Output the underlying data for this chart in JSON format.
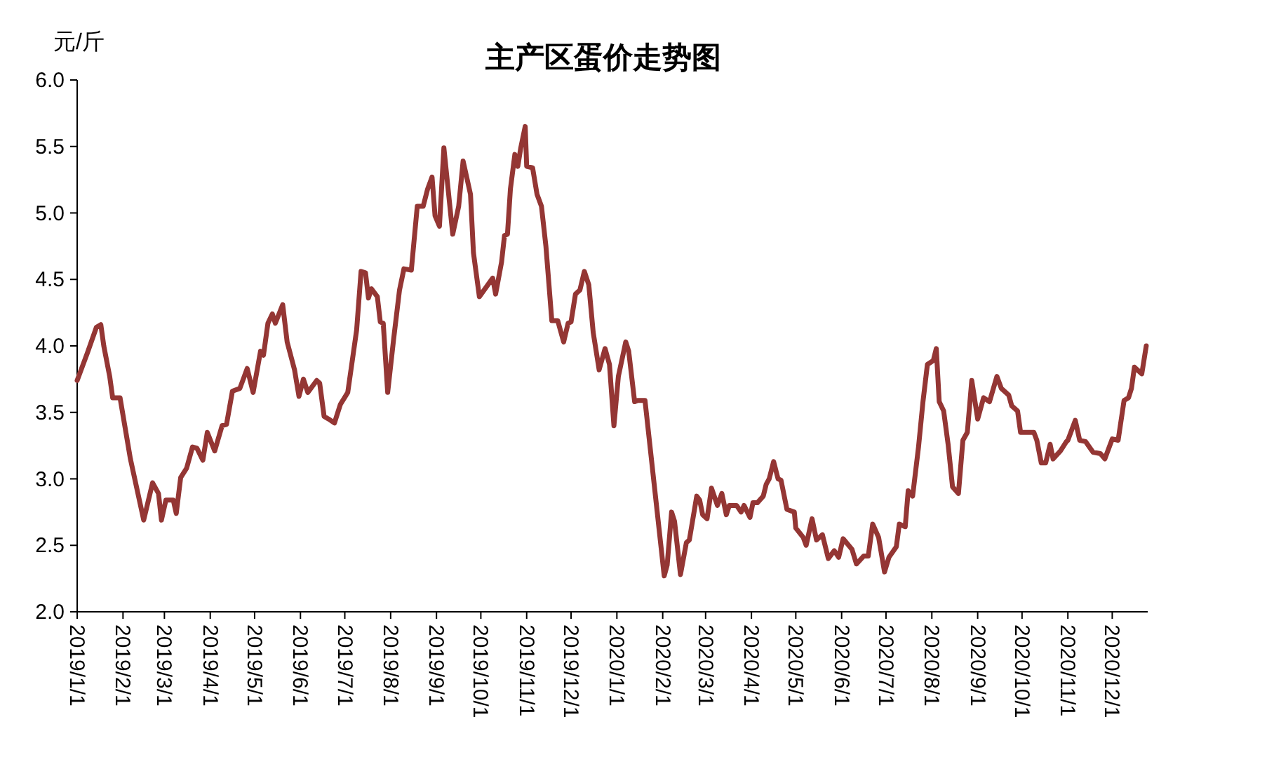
{
  "chart_data": {
    "type": "line",
    "title": "主产区蛋价走势图",
    "ylabel": "元/斤",
    "x": [
      "2019-01-01",
      "2019-01-08",
      "2019-01-14",
      "2019-01-17",
      "2019-01-19",
      "2019-01-23",
      "2019-01-25",
      "2019-01-30",
      "2019-02-06",
      "2019-02-15",
      "2019-02-21",
      "2019-02-25",
      "2019-02-27",
      "2019-03-02",
      "2019-03-07",
      "2019-03-09",
      "2019-03-12",
      "2019-03-16",
      "2019-03-20",
      "2019-03-23",
      "2019-03-27",
      "2019-03-30",
      "2019-04-04",
      "2019-04-09",
      "2019-04-12",
      "2019-04-16",
      "2019-04-21",
      "2019-04-26",
      "2019-04-30",
      "2019-05-05",
      "2019-05-07",
      "2019-05-10",
      "2019-05-13",
      "2019-05-15",
      "2019-05-20",
      "2019-05-23",
      "2019-05-28",
      "2019-05-31",
      "2019-06-03",
      "2019-06-06",
      "2019-06-12",
      "2019-06-14",
      "2019-06-17",
      "2019-06-20",
      "2019-06-24",
      "2019-06-28",
      "2019-07-03",
      "2019-07-09",
      "2019-07-12",
      "2019-07-15",
      "2019-07-17",
      "2019-07-19",
      "2019-07-23",
      "2019-07-25",
      "2019-07-27",
      "2019-07-30",
      "2019-08-03",
      "2019-08-07",
      "2019-08-10",
      "2019-08-15",
      "2019-08-19",
      "2019-08-23",
      "2019-08-26",
      "2019-08-29",
      "2019-08-31",
      "2019-09-03",
      "2019-09-06",
      "2019-09-12",
      "2019-09-16",
      "2019-09-19",
      "2019-09-24",
      "2019-09-26",
      "2019-09-30",
      "2019-10-09",
      "2019-10-11",
      "2019-10-15",
      "2019-10-17",
      "2019-10-19",
      "2019-10-21",
      "2019-10-24",
      "2019-10-26",
      "2019-10-28",
      "2019-10-31",
      "2019-11-01",
      "2019-11-05",
      "2019-11-08",
      "2019-11-11",
      "2019-11-14",
      "2019-11-18",
      "2019-11-22",
      "2019-11-26",
      "2019-11-29",
      "2019-12-01",
      "2019-12-04",
      "2019-12-07",
      "2019-12-10",
      "2019-12-13",
      "2019-12-16",
      "2019-12-20",
      "2019-12-24",
      "2019-12-27",
      "2019-12-30",
      "2020-01-02",
      "2020-01-07",
      "2020-01-09",
      "2020-01-13",
      "2020-01-15",
      "2020-01-20",
      "2020-02-02",
      "2020-02-04",
      "2020-02-07",
      "2020-02-09",
      "2020-02-13",
      "2020-02-17",
      "2020-02-19",
      "2020-02-24",
      "2020-02-26",
      "2020-02-28",
      "2020-03-02",
      "2020-03-05",
      "2020-03-09",
      "2020-03-12",
      "2020-03-15",
      "2020-03-17",
      "2020-03-22",
      "2020-03-25",
      "2020-03-27",
      "2020-03-31",
      "2020-04-02",
      "2020-04-05",
      "2020-04-09",
      "2020-04-11",
      "2020-04-13",
      "2020-04-16",
      "2020-04-19",
      "2020-04-21",
      "2020-04-25",
      "2020-04-30",
      "2020-05-01",
      "2020-05-06",
      "2020-05-08",
      "2020-05-12",
      "2020-05-15",
      "2020-05-19",
      "2020-05-23",
      "2020-05-27",
      "2020-05-30",
      "2020-06-02",
      "2020-06-08",
      "2020-06-11",
      "2020-06-16",
      "2020-06-19",
      "2020-06-22",
      "2020-06-26",
      "2020-06-30",
      "2020-07-03",
      "2020-07-08",
      "2020-07-10",
      "2020-07-14",
      "2020-07-16",
      "2020-07-19",
      "2020-07-23",
      "2020-07-26",
      "2020-07-29",
      "2020-08-02",
      "2020-08-04",
      "2020-08-06",
      "2020-08-09",
      "2020-08-12",
      "2020-08-15",
      "2020-08-19",
      "2020-08-22",
      "2020-08-25",
      "2020-08-28",
      "2020-09-01",
      "2020-09-05",
      "2020-09-09",
      "2020-09-14",
      "2020-09-17",
      "2020-09-22",
      "2020-09-24",
      "2020-09-28",
      "2020-09-30",
      "2020-10-09",
      "2020-10-11",
      "2020-10-14",
      "2020-10-17",
      "2020-10-20",
      "2020-10-22",
      "2020-10-27",
      "2020-10-31",
      "2020-11-01",
      "2020-11-06",
      "2020-11-09",
      "2020-11-13",
      "2020-11-18",
      "2020-11-23",
      "2020-11-26",
      "2020-12-01",
      "2020-12-05",
      "2020-12-09",
      "2020-12-12",
      "2020-12-14",
      "2020-12-16",
      "2020-12-21",
      "2020-12-24"
    ],
    "series": [
      {
        "color": "#943634",
        "values": [
          3.74,
          3.95,
          4.14,
          4.16,
          4.0,
          3.77,
          3.61,
          3.61,
          3.15,
          2.69,
          2.97,
          2.89,
          2.69,
          2.84,
          2.84,
          2.74,
          3.01,
          3.08,
          3.24,
          3.23,
          3.14,
          3.35,
          3.21,
          3.4,
          3.41,
          3.66,
          3.68,
          3.83,
          3.65,
          3.96,
          3.93,
          4.17,
          4.24,
          4.17,
          4.31,
          4.03,
          3.82,
          3.62,
          3.75,
          3.65,
          3.74,
          3.72,
          3.47,
          3.45,
          3.42,
          3.56,
          3.65,
          4.12,
          4.56,
          4.55,
          4.36,
          4.43,
          4.37,
          4.18,
          4.17,
          3.65,
          4.05,
          4.42,
          4.58,
          4.57,
          5.05,
          5.05,
          5.18,
          5.27,
          4.98,
          4.9,
          5.49,
          4.84,
          5.05,
          5.39,
          5.14,
          4.7,
          4.37,
          4.51,
          4.39,
          4.63,
          4.83,
          4.84,
          5.18,
          5.44,
          5.35,
          5.49,
          5.65,
          5.35,
          5.34,
          5.14,
          5.05,
          4.75,
          4.19,
          4.19,
          4.03,
          4.17,
          4.18,
          4.39,
          4.42,
          4.56,
          4.46,
          4.1,
          3.82,
          3.98,
          3.86,
          3.4,
          3.77,
          4.03,
          3.96,
          3.58,
          3.59,
          3.59,
          2.27,
          2.35,
          2.75,
          2.68,
          2.28,
          2.52,
          2.54,
          2.87,
          2.84,
          2.73,
          2.7,
          2.93,
          2.8,
          2.89,
          2.73,
          2.8,
          2.8,
          2.75,
          2.8,
          2.71,
          2.82,
          2.82,
          2.87,
          2.96,
          3.0,
          3.13,
          3.0,
          2.99,
          2.77,
          2.75,
          2.63,
          2.56,
          2.5,
          2.7,
          2.54,
          2.58,
          2.4,
          2.46,
          2.41,
          2.55,
          2.47,
          2.36,
          2.42,
          2.42,
          2.66,
          2.56,
          2.3,
          2.41,
          2.49,
          2.66,
          2.64,
          2.91,
          2.87,
          3.24,
          3.58,
          3.86,
          3.89,
          3.98,
          3.58,
          3.51,
          3.26,
          2.94,
          2.89,
          3.29,
          3.35,
          3.74,
          3.45,
          3.61,
          3.58,
          3.77,
          3.68,
          3.63,
          3.55,
          3.51,
          3.35,
          3.35,
          3.29,
          3.12,
          3.12,
          3.26,
          3.15,
          3.21,
          3.28,
          3.29,
          3.44,
          3.29,
          3.28,
          3.2,
          3.19,
          3.15,
          3.3,
          3.29,
          3.59,
          3.61,
          3.68,
          3.84,
          3.79,
          4.0
        ]
      }
    ],
    "xlim": [
      "2019-01-01",
      "2020-12-25"
    ],
    "xticks": [
      {
        "value": "2019-01-01",
        "label": "2019/1/1"
      },
      {
        "value": "2019-02-01",
        "label": "2019/2/1"
      },
      {
        "value": "2019-03-01",
        "label": "2019/3/1"
      },
      {
        "value": "2019-04-01",
        "label": "2019/4/1"
      },
      {
        "value": "2019-05-01",
        "label": "2019/5/1"
      },
      {
        "value": "2019-06-01",
        "label": "2019/6/1"
      },
      {
        "value": "2019-07-01",
        "label": "2019/7/1"
      },
      {
        "value": "2019-08-01",
        "label": "2019/8/1"
      },
      {
        "value": "2019-09-01",
        "label": "2019/9/1"
      },
      {
        "value": "2019-10-01",
        "label": "2019/10/1"
      },
      {
        "value": "2019-11-01",
        "label": "2019/11/1"
      },
      {
        "value": "2019-12-01",
        "label": "2019/12/1"
      },
      {
        "value": "2020-01-01",
        "label": "2020/1/1"
      },
      {
        "value": "2020-02-01",
        "label": "2020/2/1"
      },
      {
        "value": "2020-03-01",
        "label": "2020/3/1"
      },
      {
        "value": "2020-04-01",
        "label": "2020/4/1"
      },
      {
        "value": "2020-05-01",
        "label": "2020/5/1"
      },
      {
        "value": "2020-06-01",
        "label": "2020/6/1"
      },
      {
        "value": "2020-07-01",
        "label": "2020/7/1"
      },
      {
        "value": "2020-08-01",
        "label": "2020/8/1"
      },
      {
        "value": "2020-09-01",
        "label": "2020/9/1"
      },
      {
        "value": "2020-10-01",
        "label": "2020/10/1"
      },
      {
        "value": "2020-11-01",
        "label": "2020/11/1"
      },
      {
        "value": "2020-12-01",
        "label": "2020/12/1"
      }
    ],
    "ylim": [
      2.0,
      6.0
    ],
    "yticks": [
      {
        "value": 2.0,
        "label": "2.0"
      },
      {
        "value": 2.5,
        "label": "2.5"
      },
      {
        "value": 3.0,
        "label": "3.0"
      },
      {
        "value": 3.5,
        "label": "3.5"
      },
      {
        "value": 4.0,
        "label": "4.0"
      },
      {
        "value": 4.5,
        "label": "4.5"
      },
      {
        "value": 5.0,
        "label": "5.0"
      },
      {
        "value": 5.5,
        "label": "5.5"
      },
      {
        "value": 6.0,
        "label": "6.0"
      }
    ],
    "grid": false,
    "marker": "none",
    "line_style": "solid"
  }
}
